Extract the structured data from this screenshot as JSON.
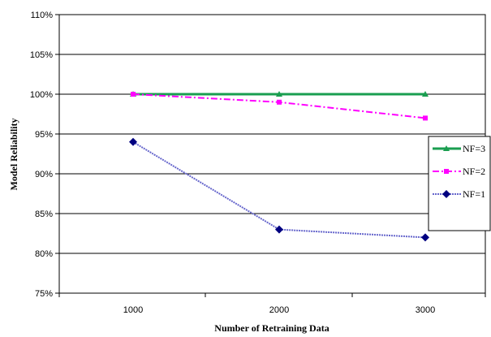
{
  "chart_data": {
    "type": "line",
    "title": "",
    "xlabel": "Number of Retraining Data",
    "ylabel": "Model Reliability",
    "x": [
      1000,
      2000,
      3000
    ],
    "ylim": [
      75,
      110
    ],
    "yticks": [
      "75%",
      "80%",
      "85%",
      "90%",
      "95%",
      "100%",
      "105%",
      "110%"
    ],
    "grid": "horizontal",
    "legend": "right",
    "series": [
      {
        "name": "NF=3",
        "values": [
          100,
          100,
          100
        ],
        "color": "#1a9e50",
        "marker": "triangle",
        "line": "solid"
      },
      {
        "name": "NF=2",
        "values": [
          100,
          99,
          97
        ],
        "color": "#ff00ff",
        "marker": "square",
        "line": "dashdot"
      },
      {
        "name": "NF=1",
        "values": [
          94,
          83,
          82
        ],
        "color": "#6666cc",
        "marker": "diamond",
        "line": "dotted",
        "marker_color": "#000080"
      }
    ]
  }
}
